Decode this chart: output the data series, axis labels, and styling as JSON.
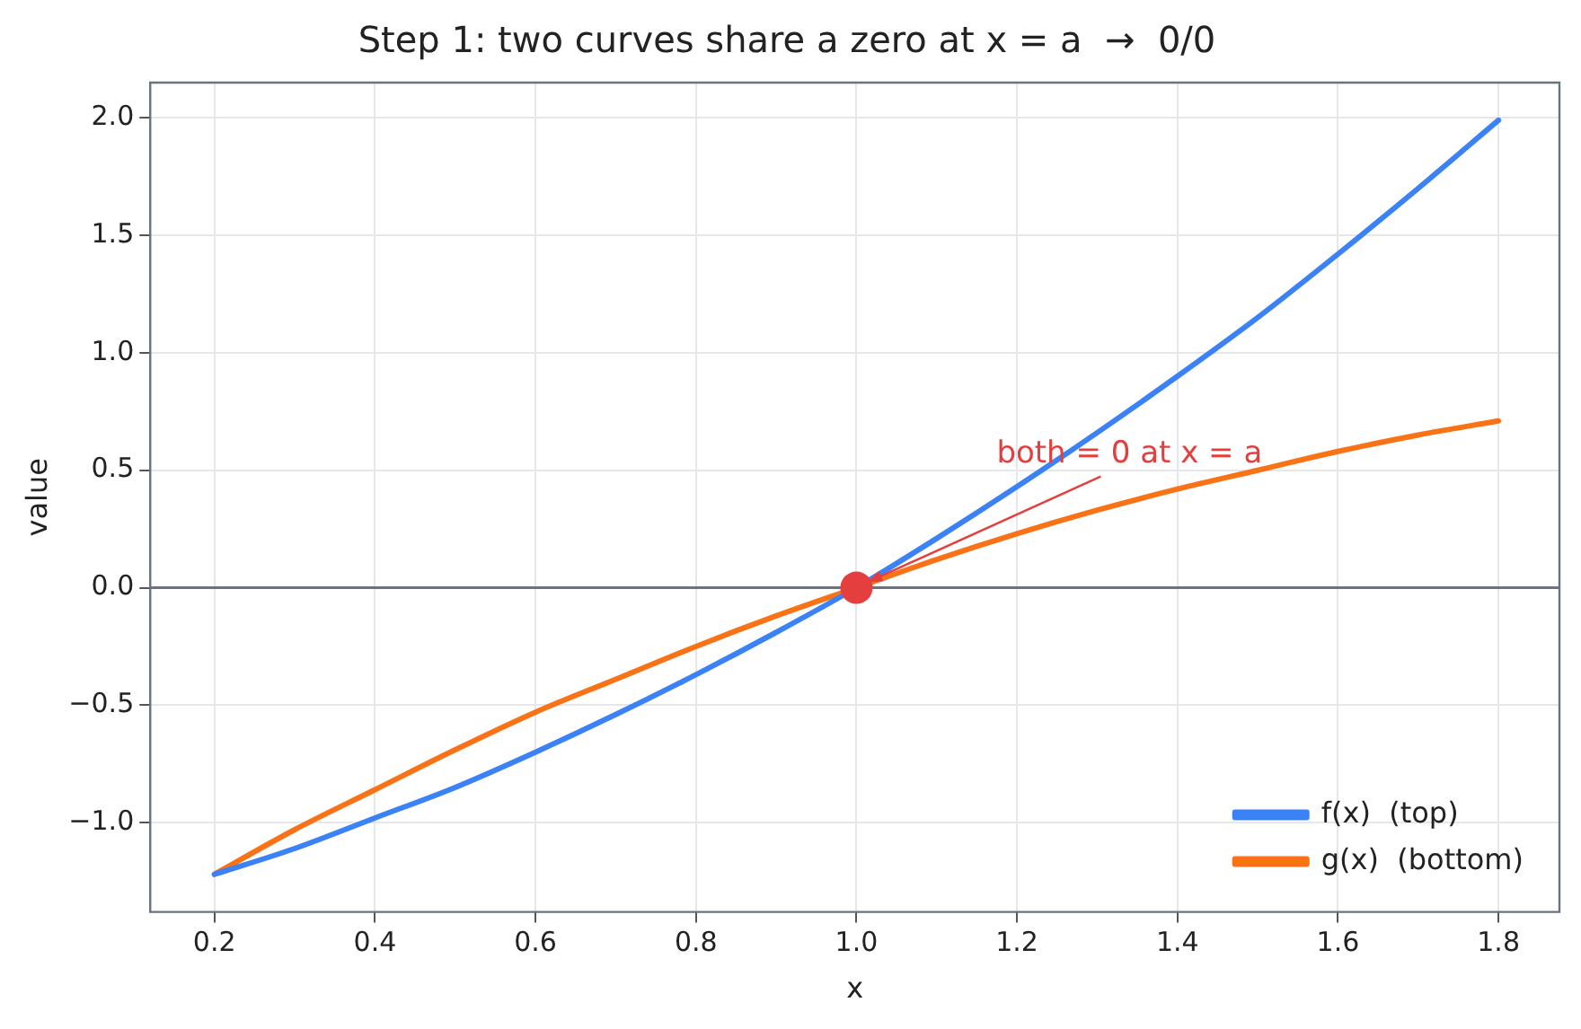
{
  "chart_data": {
    "type": "line",
    "title": "Step 1: two curves share a zero at x = a  →  0/0",
    "xlabel": "x",
    "ylabel": "value",
    "xlim": [
      0.12,
      1.876
    ],
    "ylim": [
      -1.38,
      2.15
    ],
    "xticks": [
      {
        "value": 0.2,
        "label": "0.2"
      },
      {
        "value": 0.4,
        "label": "0.4"
      },
      {
        "value": 0.6,
        "label": "0.6"
      },
      {
        "value": 0.8,
        "label": "0.8"
      },
      {
        "value": 1.0,
        "label": "1.0"
      },
      {
        "value": 1.2,
        "label": "1.2"
      },
      {
        "value": 1.4,
        "label": "1.4"
      },
      {
        "value": 1.6,
        "label": "1.6"
      },
      {
        "value": 1.8,
        "label": "1.8"
      }
    ],
    "yticks": [
      {
        "value": -1,
        "label": "−1.0"
      },
      {
        "value": -0.5,
        "label": "−0.5"
      },
      {
        "value": 0,
        "label": "0.0"
      },
      {
        "value": 0.5,
        "label": "0.5"
      },
      {
        "value": 1,
        "label": "1.0"
      },
      {
        "value": 1.5,
        "label": "1.5"
      },
      {
        "value": 2,
        "label": "2.0"
      }
    ],
    "grid": true,
    "legend": "bottom right",
    "marker": "none",
    "line_style": "solid",
    "ref_lines": [
      {
        "axis": "y",
        "value": 0,
        "color": "#6b7280"
      }
    ],
    "annotations": [
      {
        "text": "both = 0 at x = a",
        "x": 1,
        "y": 0
      }
    ],
    "series": [
      {
        "name": "f(x)  (top)",
        "color": "#3b82f6",
        "x": [
          0.2,
          0.3,
          0.4,
          0.5,
          0.6,
          0.7,
          0.8,
          0.9,
          1.0,
          1.1,
          1.2,
          1.3,
          1.4,
          1.5,
          1.6,
          1.7,
          1.8
        ],
        "values": [
          -1.22,
          -1.11,
          -0.98,
          -0.85,
          -0.7,
          -0.54,
          -0.37,
          -0.19,
          0,
          0.21,
          0.43,
          0.66,
          0.9,
          1.15,
          1.42,
          1.7,
          1.99
        ]
      },
      {
        "name": "g(x)  (bottom)",
        "color": "#f97316",
        "x": [
          0.2,
          0.3,
          0.4,
          0.5,
          0.6,
          0.7,
          0.8,
          0.9,
          1.0,
          1.1,
          1.2,
          1.3,
          1.4,
          1.5,
          1.6,
          1.7,
          1.8
        ],
        "values": [
          -1.22,
          -1.03,
          -0.86,
          -0.69,
          -0.53,
          -0.39,
          -0.25,
          -0.12,
          0,
          0.12,
          0.23,
          0.33,
          0.42,
          0.5,
          0.58,
          0.65,
          0.71
        ]
      },
      {
        "type": "scatter",
        "color": "#e53e3e",
        "marker": "circle",
        "x": [
          1.0
        ],
        "values": [
          0
        ]
      }
    ]
  }
}
